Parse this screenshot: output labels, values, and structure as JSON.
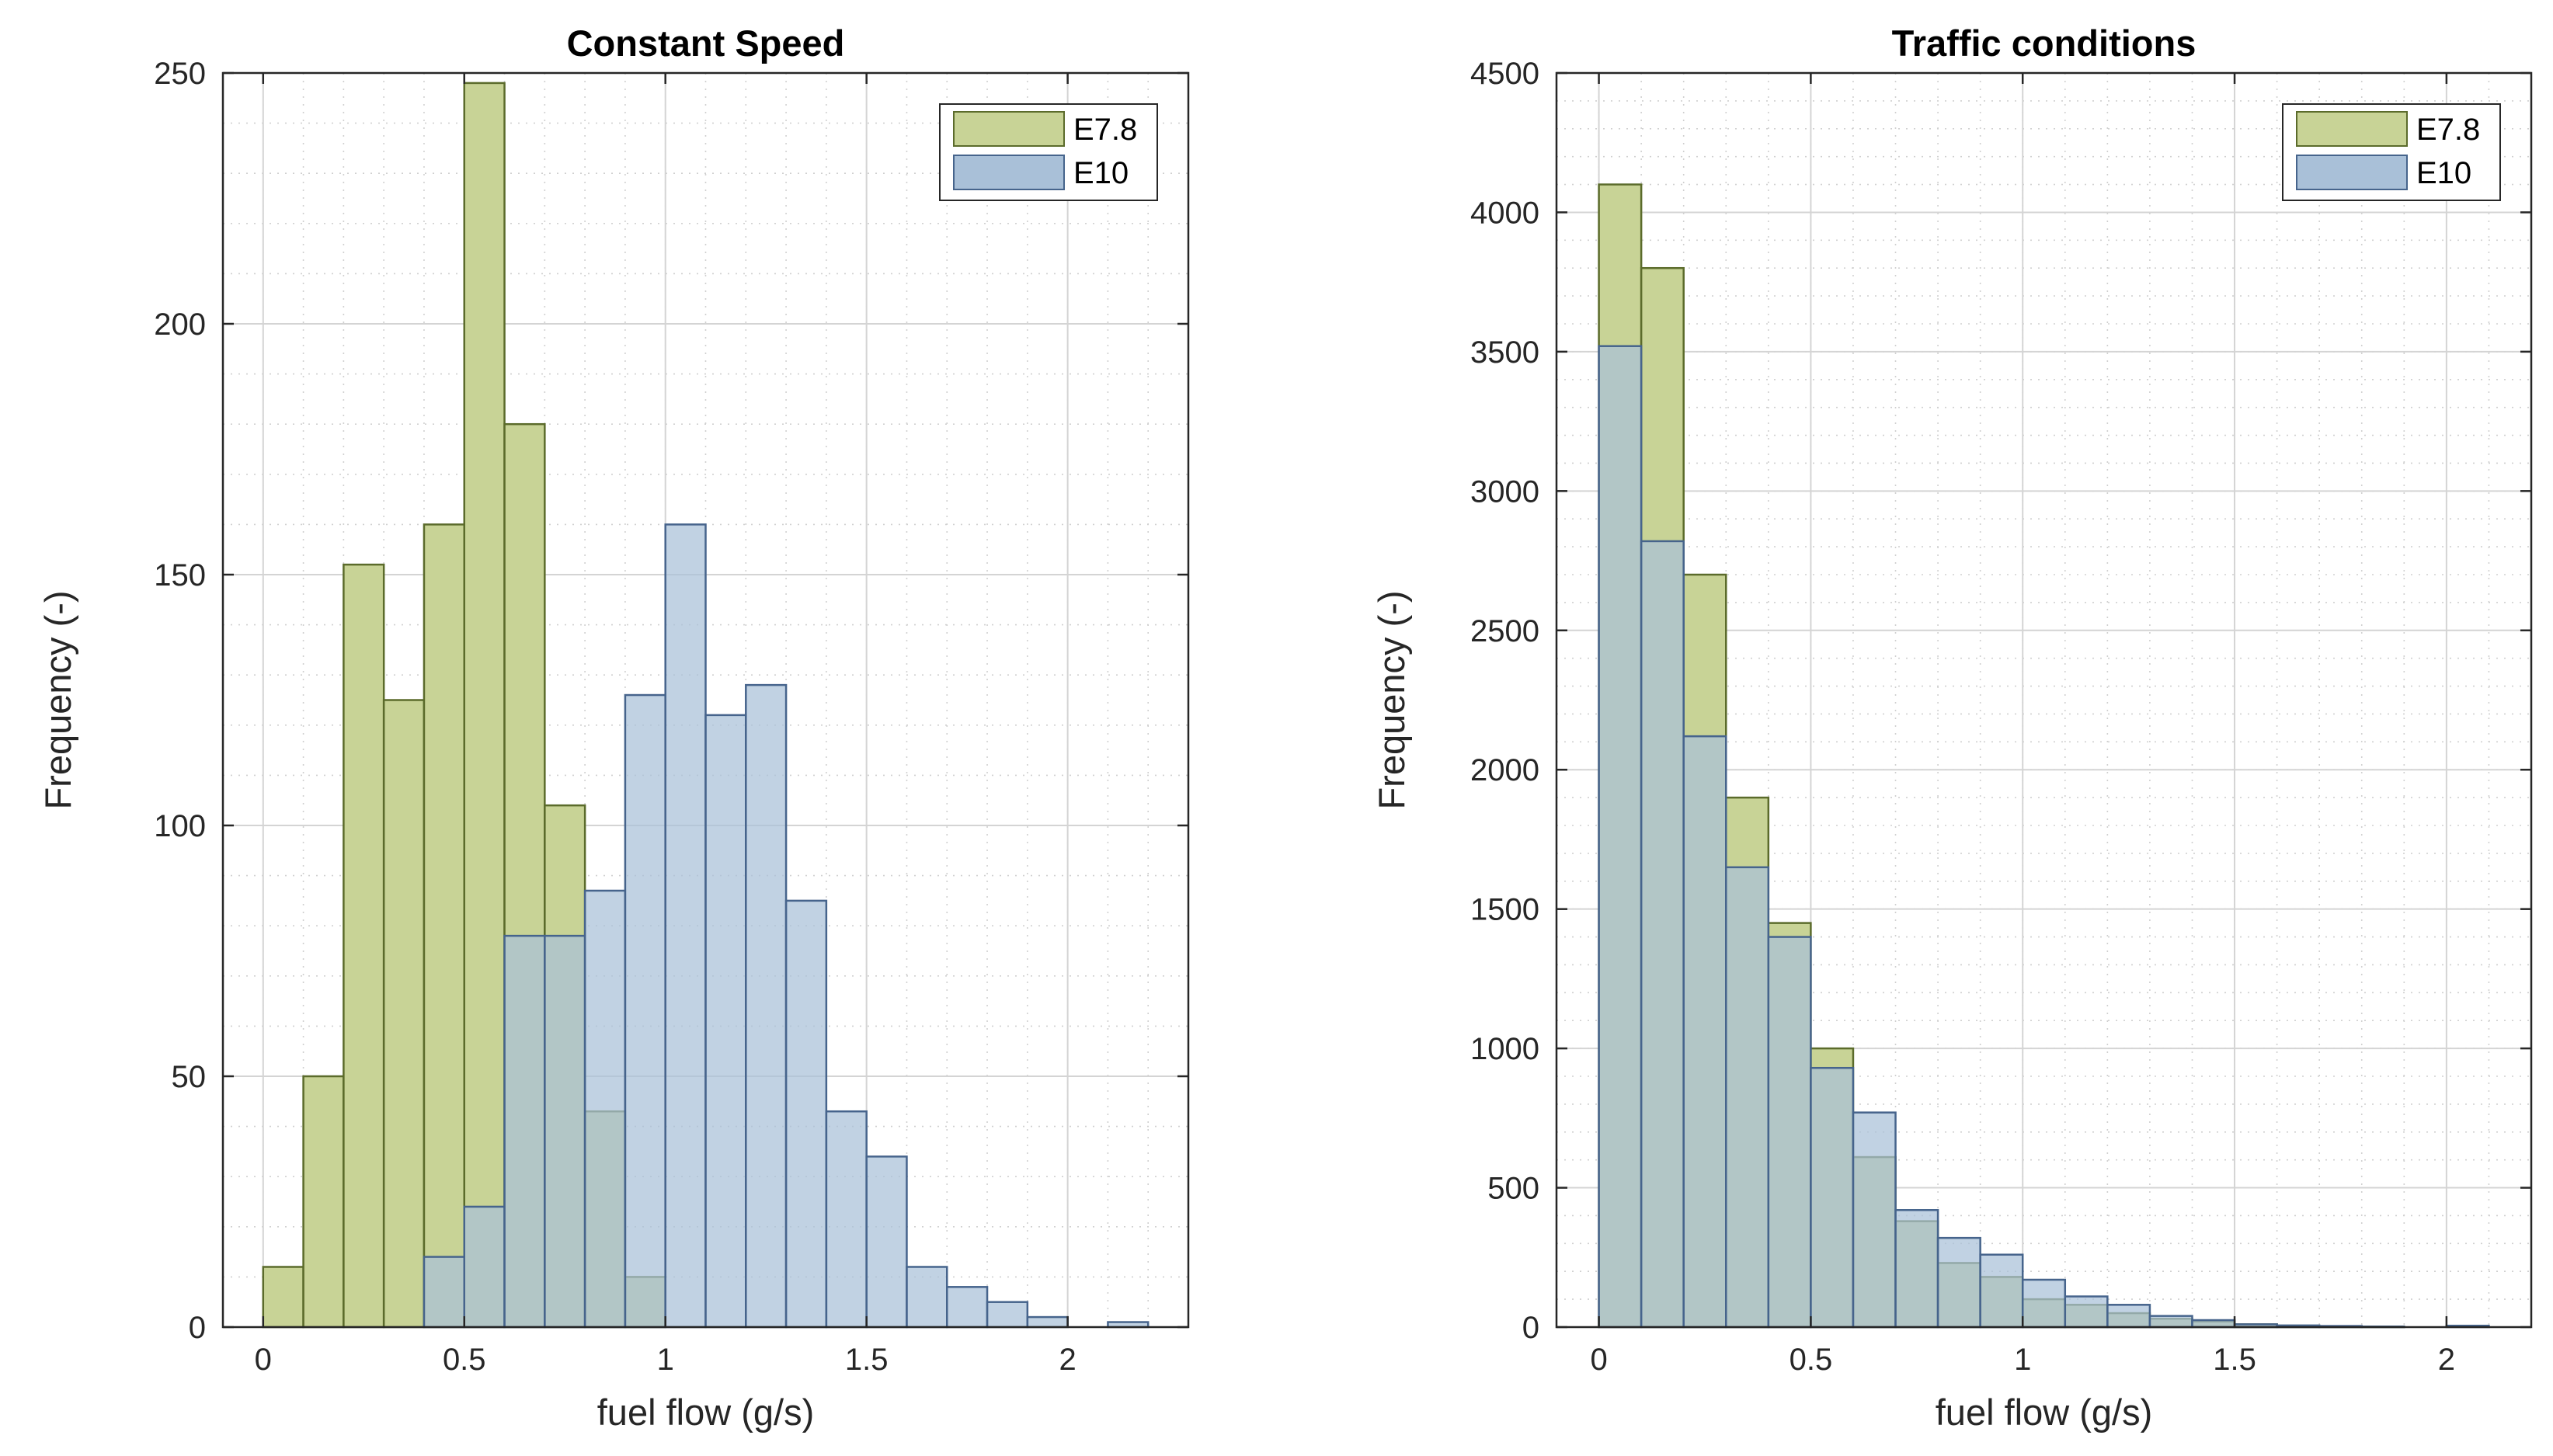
{
  "figure": {
    "background": "#ffffff"
  },
  "chart_data": [
    {
      "type": "bar",
      "subtype": "histogram",
      "title": "Constant Speed",
      "xlabel": "fuel flow (g/s)",
      "ylabel": "Frequency (-)",
      "xlim": [
        -0.1,
        2.3
      ],
      "ylim": [
        0,
        250
      ],
      "xticks": [
        0,
        0.5,
        1,
        1.5,
        2
      ],
      "xtick_labels": [
        "0",
        "0.5",
        "1",
        "1.5",
        "2"
      ],
      "yticks": [
        0,
        50,
        100,
        150,
        200,
        250
      ],
      "ytick_labels": [
        "0",
        "50",
        "100",
        "150",
        "200",
        "250"
      ],
      "grid": true,
      "minor_grid": true,
      "legend_position": "top-right",
      "series": [
        {
          "name": "E7.8",
          "color": "#c8d396",
          "edge_color": "#5b6b2b",
          "bin_width": 0.1,
          "bin_starts": [
            0,
            0.1,
            0.2,
            0.3,
            0.4,
            0.5,
            0.6,
            0.7,
            0.8,
            0.9
          ],
          "values": [
            12,
            50,
            152,
            125,
            160,
            248,
            180,
            104,
            43,
            10
          ]
        },
        {
          "name": "E10",
          "color": "#a9c0d8",
          "edge_color": "#46648c",
          "bin_width": 0.1,
          "bin_starts": [
            0.4,
            0.5,
            0.6,
            0.7,
            0.8,
            0.9,
            1.0,
            1.1,
            1.2,
            1.3,
            1.4,
            1.5,
            1.6,
            1.7,
            1.8,
            1.9,
            2.0,
            2.1
          ],
          "values": [
            14,
            24,
            78,
            78,
            87,
            126,
            160,
            122,
            128,
            85,
            43,
            34,
            12,
            8,
            5,
            2,
            0,
            1
          ]
        }
      ]
    },
    {
      "type": "bar",
      "subtype": "histogram",
      "title": "Traffic conditions",
      "xlabel": "fuel flow (g/s)",
      "ylabel": "Frequency (-)",
      "xlim": [
        -0.1,
        2.2
      ],
      "ylim": [
        0,
        4500
      ],
      "xticks": [
        0,
        0.5,
        1,
        1.5,
        2
      ],
      "xtick_labels": [
        "0",
        "0.5",
        "1",
        "1.5",
        "2"
      ],
      "yticks": [
        0,
        500,
        1000,
        1500,
        2000,
        2500,
        3000,
        3500,
        4000,
        4500
      ],
      "ytick_labels": [
        "0",
        "500",
        "1000",
        "1500",
        "2000",
        "2500",
        "3000",
        "3500",
        "4000",
        "4500"
      ],
      "grid": true,
      "minor_grid": true,
      "legend_position": "top-right",
      "series": [
        {
          "name": "E7.8",
          "color": "#c8d396",
          "edge_color": "#5b6b2b",
          "bin_width": 0.1,
          "bin_starts": [
            0,
            0.1,
            0.2,
            0.3,
            0.4,
            0.5,
            0.6,
            0.7,
            0.8,
            0.9,
            1.0,
            1.1,
            1.2,
            1.3,
            1.4,
            1.5,
            1.6,
            1.7,
            1.8
          ],
          "values": [
            4100,
            3800,
            2700,
            1900,
            1450,
            1000,
            610,
            380,
            230,
            180,
            100,
            80,
            50,
            30,
            20,
            10,
            5,
            3,
            2
          ]
        },
        {
          "name": "E10",
          "color": "#a9c0d8",
          "edge_color": "#46648c",
          "bin_width": 0.1,
          "bin_starts": [
            0,
            0.1,
            0.2,
            0.3,
            0.4,
            0.5,
            0.6,
            0.7,
            0.8,
            0.9,
            1.0,
            1.1,
            1.2,
            1.3,
            1.4,
            1.5,
            1.6,
            1.7,
            1.8,
            1.9,
            2.0
          ],
          "values": [
            3520,
            2820,
            2120,
            1650,
            1400,
            930,
            770,
            420,
            320,
            260,
            170,
            110,
            80,
            40,
            25,
            10,
            6,
            4,
            2,
            0,
            5
          ]
        }
      ]
    }
  ]
}
